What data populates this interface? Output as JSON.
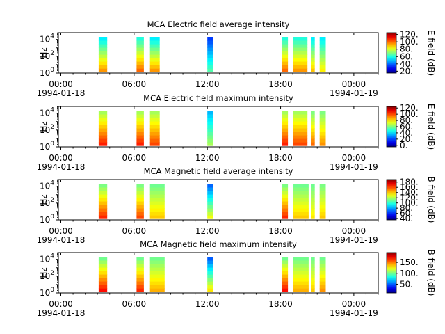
{
  "window": {
    "width": 640,
    "height": 480
  },
  "time_axis": {
    "tick_labels": [
      "00:00",
      "06:00",
      "12:00",
      "18:00",
      "00:00"
    ],
    "tick_hours": [
      0,
      6,
      12,
      18,
      24
    ],
    "minor_step_hours": 1,
    "start_date_label": "1994-01-18",
    "end_date_label": "1994-01-19",
    "range_hours": [
      -0.2,
      26
    ]
  },
  "freq_axis": {
    "label": "Hz",
    "scale": "log",
    "range_log10": [
      0,
      4.8
    ],
    "tick_labels": [
      {
        "base": "10",
        "exp": "0",
        "log10": 0
      },
      {
        "base": "10",
        "exp": "2",
        "log10": 2
      },
      {
        "base": "10",
        "exp": "4",
        "log10": 4
      }
    ]
  },
  "chart_data": [
    {
      "type": "heatmap",
      "title": "MCA  Electric field average intensity",
      "ylabel": "Hz",
      "colorbar": {
        "label": "E field (dB)",
        "range": [
          15,
          125
        ],
        "ticks": [
          {
            "v": 20,
            "t": "20."
          },
          {
            "v": 40,
            "t": "40."
          },
          {
            "v": 60,
            "t": "60."
          },
          {
            "v": 80,
            "t": "80."
          },
          {
            "v": 100,
            "t": "100."
          },
          {
            "v": 120,
            "t": "120."
          }
        ]
      },
      "blocks": [
        {
          "start": 3.1,
          "end": 3.8,
          "low_db": 95,
          "high_db": 55
        },
        {
          "start": 6.2,
          "end": 6.8,
          "low_db": 100,
          "high_db": 60
        },
        {
          "start": 7.3,
          "end": 8.1,
          "low_db": 95,
          "high_db": 55
        },
        {
          "start": 12.0,
          "end": 12.5,
          "low_db": 65,
          "high_db": 35
        },
        {
          "start": 18.1,
          "end": 18.6,
          "low_db": 100,
          "high_db": 60
        },
        {
          "start": 19.0,
          "end": 20.2,
          "low_db": 95,
          "high_db": 60
        },
        {
          "start": 20.5,
          "end": 20.8,
          "low_db": 90,
          "high_db": 55
        },
        {
          "start": 21.2,
          "end": 21.7,
          "low_db": 85,
          "high_db": 55
        }
      ]
    },
    {
      "type": "heatmap",
      "title": "MCA  Electric field maximum intensity",
      "ylabel": "Hz",
      "colorbar": {
        "label": "E field (dB)",
        "range": [
          -5,
          125
        ],
        "ticks": [
          {
            "v": 0,
            "t": "0."
          },
          {
            "v": 20,
            "t": "20."
          },
          {
            "v": 40,
            "t": "40."
          },
          {
            "v": 60,
            "t": "60."
          },
          {
            "v": 80,
            "t": "80."
          },
          {
            "v": 100,
            "t": "100."
          },
          {
            "v": 120,
            "t": "120."
          }
        ]
      },
      "blocks": [
        {
          "start": 3.1,
          "end": 3.8,
          "low_db": 105,
          "high_db": 65
        },
        {
          "start": 6.2,
          "end": 6.8,
          "low_db": 105,
          "high_db": 65
        },
        {
          "start": 7.3,
          "end": 8.1,
          "low_db": 100,
          "high_db": 65
        },
        {
          "start": 12.0,
          "end": 12.5,
          "low_db": 65,
          "high_db": 35
        },
        {
          "start": 18.1,
          "end": 18.6,
          "low_db": 105,
          "high_db": 65
        },
        {
          "start": 19.0,
          "end": 20.2,
          "low_db": 100,
          "high_db": 65
        },
        {
          "start": 20.5,
          "end": 20.8,
          "low_db": 95,
          "high_db": 60
        },
        {
          "start": 21.2,
          "end": 21.7,
          "low_db": 90,
          "high_db": 60
        }
      ]
    },
    {
      "type": "heatmap",
      "title": "MCA  Magnetic field average intensity",
      "ylabel": "Hz",
      "colorbar": {
        "label": "B field (dB)",
        "range": [
          35,
          190
        ],
        "ticks": [
          {
            "v": 40,
            "t": "40."
          },
          {
            "v": 60,
            "t": "60."
          },
          {
            "v": 80,
            "t": "80."
          },
          {
            "v": 100,
            "t": "100."
          },
          {
            "v": 120,
            "t": "120."
          },
          {
            "v": 140,
            "t": "140."
          },
          {
            "v": 160,
            "t": "160."
          },
          {
            "v": 180,
            "t": "180."
          }
        ]
      },
      "blocks": [
        {
          "start": 3.1,
          "end": 3.8,
          "low_db": 165,
          "high_db": 112
        },
        {
          "start": 6.2,
          "end": 6.8,
          "low_db": 160,
          "high_db": 112
        },
        {
          "start": 7.3,
          "end": 8.5,
          "low_db": 140,
          "high_db": 110
        },
        {
          "start": 12.0,
          "end": 12.5,
          "low_db": 130,
          "high_db": 70
        },
        {
          "start": 18.1,
          "end": 18.6,
          "low_db": 165,
          "high_db": 112
        },
        {
          "start": 19.0,
          "end": 20.3,
          "low_db": 140,
          "high_db": 110
        },
        {
          "start": 20.5,
          "end": 20.8,
          "low_db": 135,
          "high_db": 110
        },
        {
          "start": 21.2,
          "end": 21.7,
          "low_db": 140,
          "high_db": 112
        }
      ]
    },
    {
      "type": "heatmap",
      "title": "MCA  Magnetic field maximum intensity",
      "ylabel": "Hz",
      "colorbar": {
        "label": "B field (dB)",
        "range": [
          10,
          195
        ],
        "ticks": [
          {
            "v": 50,
            "t": "50."
          },
          {
            "v": 100,
            "t": "100."
          },
          {
            "v": 150,
            "t": "150."
          }
        ]
      },
      "blocks": [
        {
          "start": 3.1,
          "end": 3.8,
          "low_db": 170,
          "high_db": 100
        },
        {
          "start": 6.2,
          "end": 6.8,
          "low_db": 165,
          "high_db": 100
        },
        {
          "start": 7.3,
          "end": 8.5,
          "low_db": 140,
          "high_db": 100
        },
        {
          "start": 12.0,
          "end": 12.5,
          "low_db": 130,
          "high_db": 50
        },
        {
          "start": 18.1,
          "end": 18.6,
          "low_db": 170,
          "high_db": 100
        },
        {
          "start": 19.0,
          "end": 20.3,
          "low_db": 140,
          "high_db": 100
        },
        {
          "start": 20.5,
          "end": 20.8,
          "low_db": 135,
          "high_db": 100
        },
        {
          "start": 21.2,
          "end": 21.7,
          "low_db": 145,
          "high_db": 100
        }
      ]
    }
  ]
}
